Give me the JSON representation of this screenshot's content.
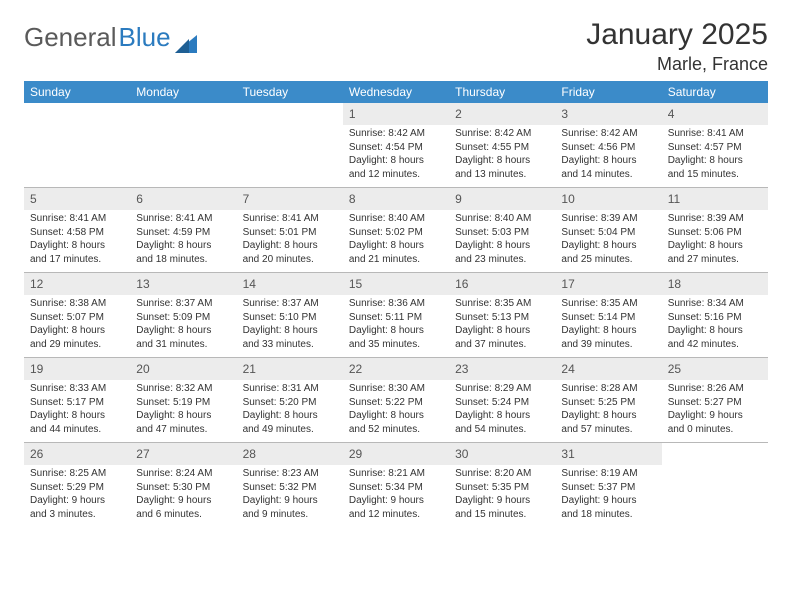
{
  "logo": {
    "text1": "General",
    "text2": "Blue"
  },
  "title": "January 2025",
  "location": "Marle, France",
  "colors": {
    "header_bg": "#3b8bc9",
    "header_text": "#ffffff",
    "daynum_bg": "#ececec",
    "border": "#b8b8b8",
    "text": "#333333",
    "logo_gray": "#5a5a5a",
    "logo_blue": "#2b7bbf"
  },
  "day_names": [
    "Sunday",
    "Monday",
    "Tuesday",
    "Wednesday",
    "Thursday",
    "Friday",
    "Saturday"
  ],
  "weeks": [
    [
      {
        "num": "",
        "lines": []
      },
      {
        "num": "",
        "lines": []
      },
      {
        "num": "",
        "lines": []
      },
      {
        "num": "1",
        "lines": [
          "Sunrise: 8:42 AM",
          "Sunset: 4:54 PM",
          "Daylight: 8 hours",
          "and 12 minutes."
        ]
      },
      {
        "num": "2",
        "lines": [
          "Sunrise: 8:42 AM",
          "Sunset: 4:55 PM",
          "Daylight: 8 hours",
          "and 13 minutes."
        ]
      },
      {
        "num": "3",
        "lines": [
          "Sunrise: 8:42 AM",
          "Sunset: 4:56 PM",
          "Daylight: 8 hours",
          "and 14 minutes."
        ]
      },
      {
        "num": "4",
        "lines": [
          "Sunrise: 8:41 AM",
          "Sunset: 4:57 PM",
          "Daylight: 8 hours",
          "and 15 minutes."
        ]
      }
    ],
    [
      {
        "num": "5",
        "lines": [
          "Sunrise: 8:41 AM",
          "Sunset: 4:58 PM",
          "Daylight: 8 hours",
          "and 17 minutes."
        ]
      },
      {
        "num": "6",
        "lines": [
          "Sunrise: 8:41 AM",
          "Sunset: 4:59 PM",
          "Daylight: 8 hours",
          "and 18 minutes."
        ]
      },
      {
        "num": "7",
        "lines": [
          "Sunrise: 8:41 AM",
          "Sunset: 5:01 PM",
          "Daylight: 8 hours",
          "and 20 minutes."
        ]
      },
      {
        "num": "8",
        "lines": [
          "Sunrise: 8:40 AM",
          "Sunset: 5:02 PM",
          "Daylight: 8 hours",
          "and 21 minutes."
        ]
      },
      {
        "num": "9",
        "lines": [
          "Sunrise: 8:40 AM",
          "Sunset: 5:03 PM",
          "Daylight: 8 hours",
          "and 23 minutes."
        ]
      },
      {
        "num": "10",
        "lines": [
          "Sunrise: 8:39 AM",
          "Sunset: 5:04 PM",
          "Daylight: 8 hours",
          "and 25 minutes."
        ]
      },
      {
        "num": "11",
        "lines": [
          "Sunrise: 8:39 AM",
          "Sunset: 5:06 PM",
          "Daylight: 8 hours",
          "and 27 minutes."
        ]
      }
    ],
    [
      {
        "num": "12",
        "lines": [
          "Sunrise: 8:38 AM",
          "Sunset: 5:07 PM",
          "Daylight: 8 hours",
          "and 29 minutes."
        ]
      },
      {
        "num": "13",
        "lines": [
          "Sunrise: 8:37 AM",
          "Sunset: 5:09 PM",
          "Daylight: 8 hours",
          "and 31 minutes."
        ]
      },
      {
        "num": "14",
        "lines": [
          "Sunrise: 8:37 AM",
          "Sunset: 5:10 PM",
          "Daylight: 8 hours",
          "and 33 minutes."
        ]
      },
      {
        "num": "15",
        "lines": [
          "Sunrise: 8:36 AM",
          "Sunset: 5:11 PM",
          "Daylight: 8 hours",
          "and 35 minutes."
        ]
      },
      {
        "num": "16",
        "lines": [
          "Sunrise: 8:35 AM",
          "Sunset: 5:13 PM",
          "Daylight: 8 hours",
          "and 37 minutes."
        ]
      },
      {
        "num": "17",
        "lines": [
          "Sunrise: 8:35 AM",
          "Sunset: 5:14 PM",
          "Daylight: 8 hours",
          "and 39 minutes."
        ]
      },
      {
        "num": "18",
        "lines": [
          "Sunrise: 8:34 AM",
          "Sunset: 5:16 PM",
          "Daylight: 8 hours",
          "and 42 minutes."
        ]
      }
    ],
    [
      {
        "num": "19",
        "lines": [
          "Sunrise: 8:33 AM",
          "Sunset: 5:17 PM",
          "Daylight: 8 hours",
          "and 44 minutes."
        ]
      },
      {
        "num": "20",
        "lines": [
          "Sunrise: 8:32 AM",
          "Sunset: 5:19 PM",
          "Daylight: 8 hours",
          "and 47 minutes."
        ]
      },
      {
        "num": "21",
        "lines": [
          "Sunrise: 8:31 AM",
          "Sunset: 5:20 PM",
          "Daylight: 8 hours",
          "and 49 minutes."
        ]
      },
      {
        "num": "22",
        "lines": [
          "Sunrise: 8:30 AM",
          "Sunset: 5:22 PM",
          "Daylight: 8 hours",
          "and 52 minutes."
        ]
      },
      {
        "num": "23",
        "lines": [
          "Sunrise: 8:29 AM",
          "Sunset: 5:24 PM",
          "Daylight: 8 hours",
          "and 54 minutes."
        ]
      },
      {
        "num": "24",
        "lines": [
          "Sunrise: 8:28 AM",
          "Sunset: 5:25 PM",
          "Daylight: 8 hours",
          "and 57 minutes."
        ]
      },
      {
        "num": "25",
        "lines": [
          "Sunrise: 8:26 AM",
          "Sunset: 5:27 PM",
          "Daylight: 9 hours",
          "and 0 minutes."
        ]
      }
    ],
    [
      {
        "num": "26",
        "lines": [
          "Sunrise: 8:25 AM",
          "Sunset: 5:29 PM",
          "Daylight: 9 hours",
          "and 3 minutes."
        ]
      },
      {
        "num": "27",
        "lines": [
          "Sunrise: 8:24 AM",
          "Sunset: 5:30 PM",
          "Daylight: 9 hours",
          "and 6 minutes."
        ]
      },
      {
        "num": "28",
        "lines": [
          "Sunrise: 8:23 AM",
          "Sunset: 5:32 PM",
          "Daylight: 9 hours",
          "and 9 minutes."
        ]
      },
      {
        "num": "29",
        "lines": [
          "Sunrise: 8:21 AM",
          "Sunset: 5:34 PM",
          "Daylight: 9 hours",
          "and 12 minutes."
        ]
      },
      {
        "num": "30",
        "lines": [
          "Sunrise: 8:20 AM",
          "Sunset: 5:35 PM",
          "Daylight: 9 hours",
          "and 15 minutes."
        ]
      },
      {
        "num": "31",
        "lines": [
          "Sunrise: 8:19 AM",
          "Sunset: 5:37 PM",
          "Daylight: 9 hours",
          "and 18 minutes."
        ]
      },
      {
        "num": "",
        "lines": []
      }
    ]
  ]
}
